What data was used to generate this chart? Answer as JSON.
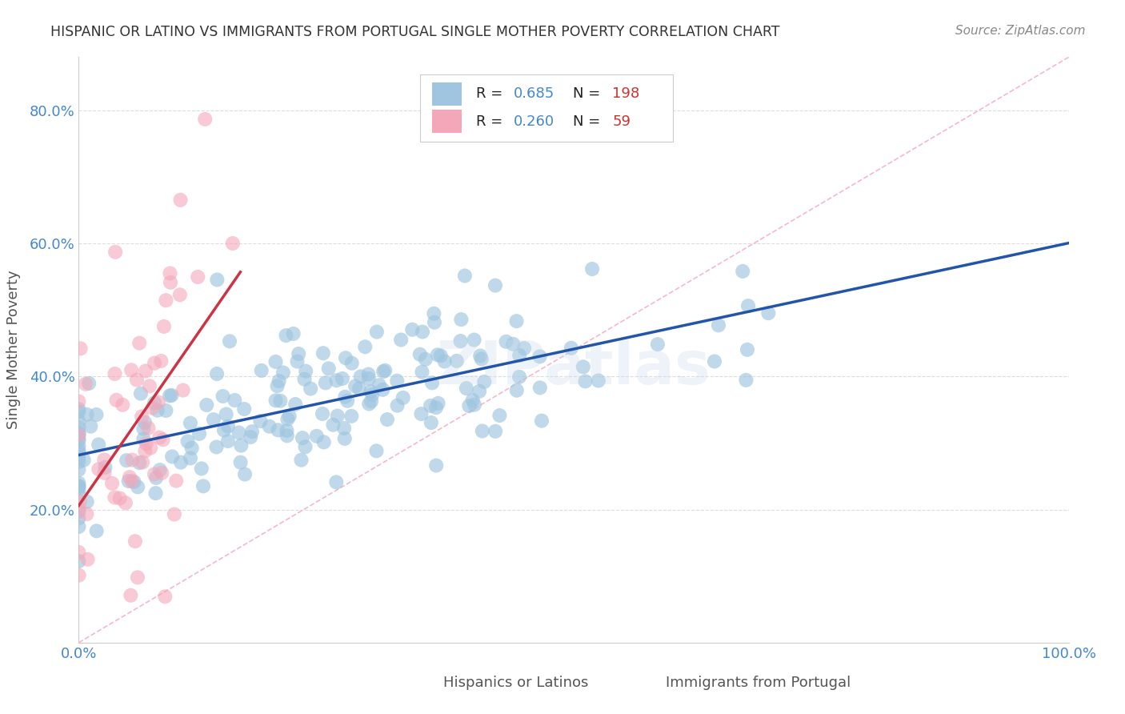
{
  "title": "HISPANIC OR LATINO VS IMMIGRANTS FROM PORTUGAL SINGLE MOTHER POVERTY CORRELATION CHART",
  "source": "Source: ZipAtlas.com",
  "ylabel": "Single Mother Poverty",
  "ytick_vals": [
    0.2,
    0.4,
    0.6,
    0.8
  ],
  "ytick_labels": [
    "20.0%",
    "40.0%",
    "60.0%",
    "80.0%"
  ],
  "xtick_vals": [
    0.0,
    1.0
  ],
  "xtick_labels": [
    "0.0%",
    "100.0%"
  ],
  "blue_scatter_color": "#9fc5e0",
  "pink_scatter_color": "#f4a7b9",
  "blue_line_color": "#2255aa",
  "pink_line_color": "#cc3344",
  "dashed_line_color": "#f4a7b9",
  "watermark": "ZIPatlas",
  "background_color": "#ffffff",
  "grid_color": "#dddddd",
  "title_color": "#333333",
  "axis_label_color": "#555555",
  "tick_color": "#4488cc",
  "legend_R_color": "#4488cc",
  "legend_N_color": "#cc3333",
  "R_blue": 0.685,
  "N_blue": 198,
  "R_pink": 0.26,
  "N_pink": 59,
  "blue_label": "Hispanics or Latinos",
  "pink_label": "Immigrants from Portugal",
  "xlim": [
    0.0,
    1.0
  ],
  "ylim": [
    0.0,
    0.88
  ]
}
